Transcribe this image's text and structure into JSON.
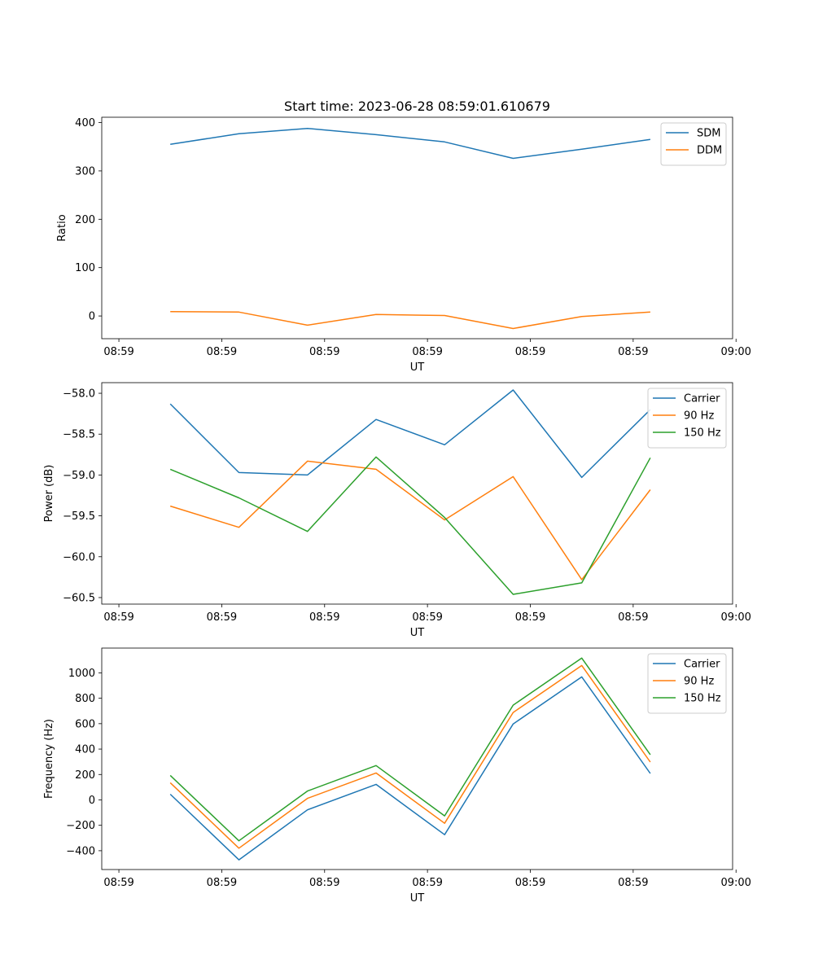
{
  "figure": {
    "title": "Start time: 2023-06-28 08:59:01.610679"
  },
  "chart_data": [
    {
      "type": "line",
      "xlabel": "UT",
      "ylabel": "Ratio",
      "xlim": [
        0,
        9.2
      ],
      "ylim": [
        -47,
        411
      ],
      "x_ticks": [
        0.25,
        1.75,
        3.25,
        4.75,
        6.25,
        7.75,
        9.25
      ],
      "x_tick_labels": [
        "08:59",
        "08:59",
        "08:59",
        "08:59",
        "08:59",
        "08:59",
        "09:00"
      ],
      "y_ticks": [
        0,
        100,
        200,
        300,
        400
      ],
      "y_tick_labels": [
        "0",
        "100",
        "200",
        "300",
        "400"
      ],
      "legend": "top-right",
      "x": [
        1,
        2,
        3,
        4,
        5,
        6,
        7,
        8
      ],
      "series": [
        {
          "name": "SDM",
          "color": "#1f77b4",
          "values": [
            355,
            377,
            388,
            375,
            360,
            326,
            345,
            365
          ]
        },
        {
          "name": "DDM",
          "color": "#ff7f0e",
          "values": [
            9,
            8,
            -19,
            3,
            1,
            -26,
            -1,
            8
          ]
        }
      ]
    },
    {
      "type": "line",
      "xlabel": "UT",
      "ylabel": "Power (dB)",
      "xlim": [
        0,
        9.2
      ],
      "ylim": [
        -60.58,
        -57.87
      ],
      "x_ticks": [
        0.25,
        1.75,
        3.25,
        4.75,
        6.25,
        7.75,
        9.25
      ],
      "x_tick_labels": [
        "08:59",
        "08:59",
        "08:59",
        "08:59",
        "08:59",
        "08:59",
        "09:00"
      ],
      "y_ticks": [
        -60.5,
        -60.0,
        -59.5,
        -59.0,
        -58.5,
        -58.0
      ],
      "y_tick_labels": [
        "−60.5",
        "−60.0",
        "−59.5",
        "−59.0",
        "−58.5",
        "−58.0"
      ],
      "legend": "top-right",
      "x": [
        1,
        2,
        3,
        4,
        5,
        6,
        7,
        8
      ],
      "series": [
        {
          "name": "Carrier",
          "color": "#1f77b4",
          "values": [
            -58.13,
            -58.97,
            -59.0,
            -58.32,
            -58.63,
            -57.96,
            -59.03,
            -58.2
          ]
        },
        {
          "name": "90 Hz",
          "color": "#ff7f0e",
          "values": [
            -59.38,
            -59.64,
            -58.83,
            -58.93,
            -59.55,
            -59.02,
            -60.28,
            -59.18
          ]
        },
        {
          "name": "150 Hz",
          "color": "#2ca02c",
          "values": [
            -58.93,
            -59.28,
            -59.69,
            -58.78,
            -59.52,
            -60.46,
            -60.32,
            -58.79
          ]
        }
      ]
    },
    {
      "type": "line",
      "xlabel": "UT",
      "ylabel": "Frequency (Hz)",
      "xlim": [
        0,
        9.2
      ],
      "ylim": [
        -548,
        1195
      ],
      "x_ticks": [
        0.25,
        1.75,
        3.25,
        4.75,
        6.25,
        7.75,
        9.25
      ],
      "x_tick_labels": [
        "08:59",
        "08:59",
        "08:59",
        "08:59",
        "08:59",
        "08:59",
        "09:00"
      ],
      "y_ticks": [
        -400,
        -200,
        0,
        200,
        400,
        600,
        800,
        1000
      ],
      "y_tick_labels": [
        "−400",
        "−200",
        "0",
        "200",
        "400",
        "600",
        "800",
        "1000"
      ],
      "legend": "top-right",
      "x": [
        1,
        2,
        3,
        4,
        5,
        6,
        7,
        8
      ],
      "series": [
        {
          "name": "Carrier",
          "color": "#1f77b4",
          "values": [
            45,
            -472,
            -78,
            122,
            -274,
            598,
            968,
            208
          ]
        },
        {
          "name": "90 Hz",
          "color": "#ff7f0e",
          "values": [
            135,
            -380,
            12,
            212,
            -184,
            688,
            1058,
            298
          ]
        },
        {
          "name": "150 Hz",
          "color": "#2ca02c",
          "values": [
            193,
            -322,
            70,
            270,
            -126,
            746,
            1116,
            356
          ]
        }
      ]
    }
  ]
}
